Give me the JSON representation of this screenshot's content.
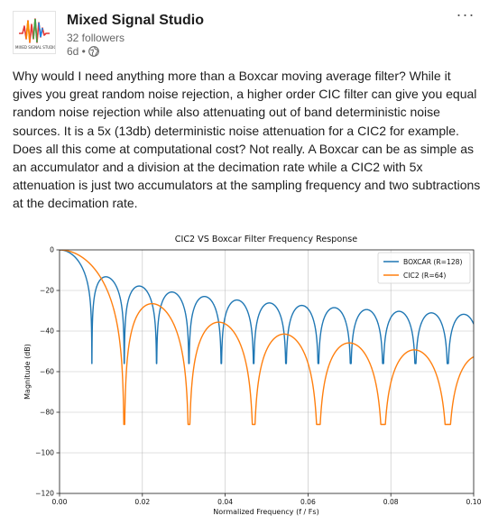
{
  "post": {
    "author": "Mixed Signal Studio",
    "followers": "32 followers",
    "time": "6d •",
    "visibility_icon": "globe-icon",
    "more_icon": "more-dots-icon",
    "more_label": "···",
    "logo_text": "MIXED SIGNAL STUDIO",
    "logo_colors": [
      "#e53935",
      "#fb8c00",
      "#fdd835",
      "#43a047",
      "#1e88e5"
    ],
    "body": "Why would I need anything more than a Boxcar moving average filter? While it gives you great random noise rejection, a higher order CIC filter can give you equal random noise rejection while also attenuating out of band deterministic noise sources. It is a 5x (13db) deterministic noise attenuation for a CIC2 for example. Does all this come at computational cost? Not really. A Boxcar can be as simple as an accumulator and a division at the decimation rate while a CIC2 with 5x attenuation is just two accumulators at the sampling frequency and two subtractions at the decimation rate."
  },
  "chart_data": {
    "type": "line",
    "title": "CIC2 VS Boxcar Filter Frequency Response",
    "xlabel": "Normalized Frequency (f / Fs)",
    "ylabel": "Magnitude (dB)",
    "xlim": [
      0.0,
      0.1
    ],
    "ylim": [
      -120,
      0
    ],
    "x_ticks": [
      0.0,
      0.02,
      0.04,
      0.06,
      0.08,
      0.1
    ],
    "x_tick_labels": [
      "0.00",
      "0.02",
      "0.04",
      "0.06",
      "0.08",
      "0.10"
    ],
    "y_ticks": [
      0,
      -20,
      -40,
      -60,
      -80,
      -100,
      -120
    ],
    "y_tick_labels": [
      "0",
      "−20",
      "−40",
      "−60",
      "−80",
      "−100",
      "−120"
    ],
    "grid": true,
    "legend_position": "top-right",
    "series": [
      {
        "name": "BOXCAR (R=128)",
        "color": "#1f77b4",
        "R": 128,
        "order": 1,
        "null_floor_db": -56
      },
      {
        "name": "CIC2 (R=64)",
        "color": "#ff7f0e",
        "R": 64,
        "order": 2,
        "null_floor_db": -86
      }
    ]
  }
}
